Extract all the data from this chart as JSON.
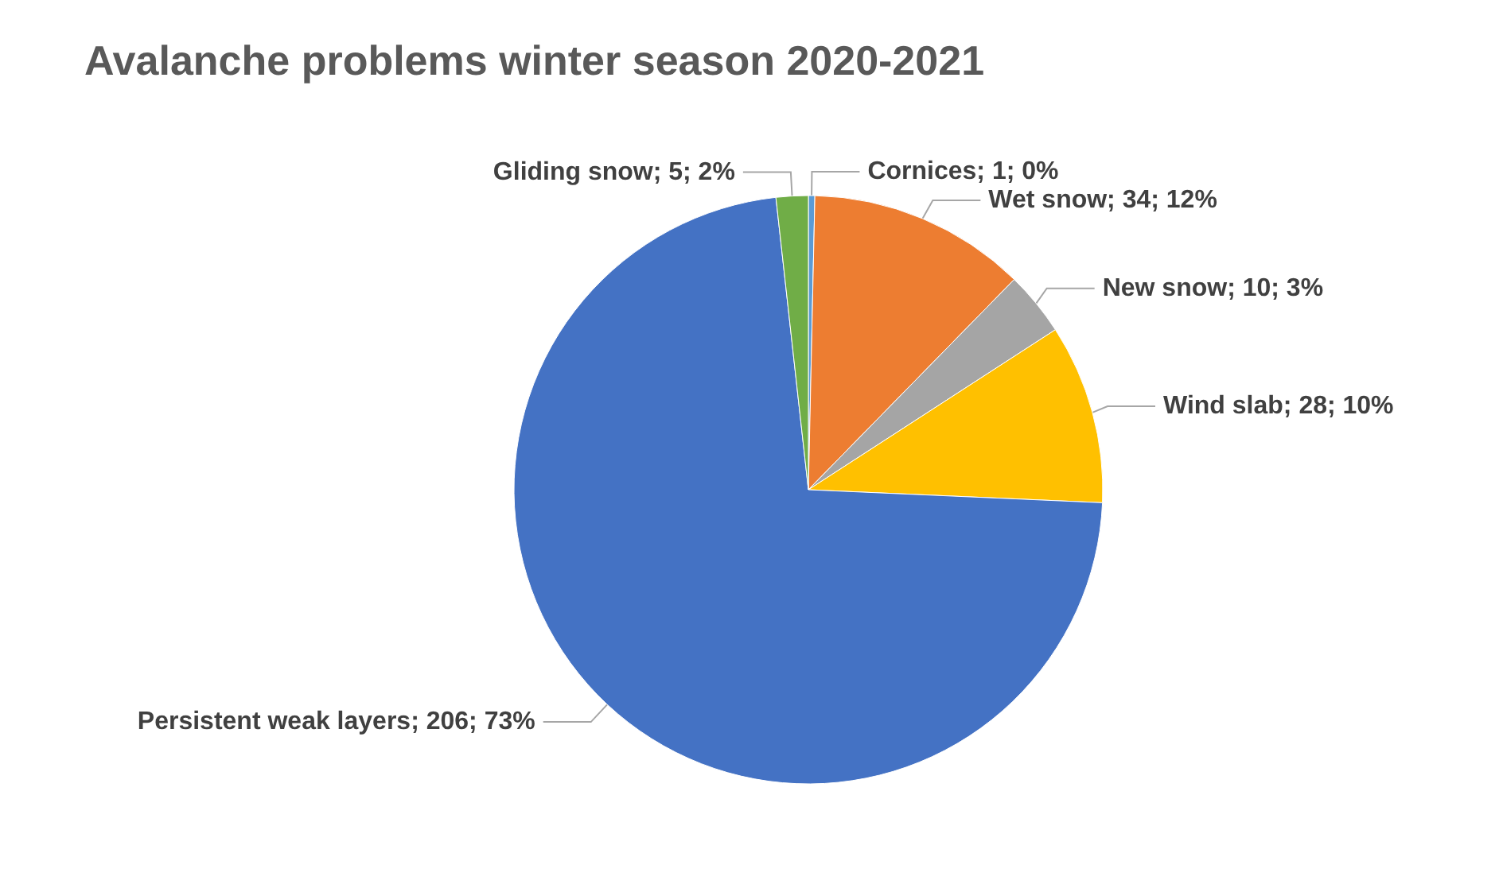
{
  "chart_data": {
    "type": "pie",
    "title": "Avalanche problems winter season 2020-2021",
    "categories": [
      "Cornices",
      "Wet snow",
      "New snow",
      "Wind slab",
      "Persistent weak layers",
      "Gliding snow"
    ],
    "values": [
      1,
      34,
      10,
      28,
      206,
      5
    ],
    "value_labels": [
      "1; 0%",
      "34; 12%",
      "10; 3%",
      "28; 10%",
      "206; 73%",
      "5; 2%"
    ],
    "colors": [
      "#5b9bd5",
      "#ed7d31",
      "#a5a5a5",
      "#ffc000",
      "#4472c4",
      "#70ad47"
    ],
    "legend": false
  }
}
